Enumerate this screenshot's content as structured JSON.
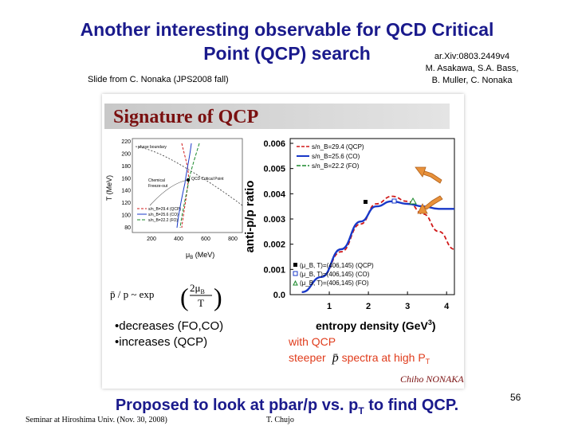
{
  "title": {
    "line1": "Another interesting observable for QCD Critical",
    "line2": "Point (QCP) search"
  },
  "reference": {
    "arxiv": "ar.Xiv:0803.2449v4",
    "authors1": "M. Asakawa, S.A. Bass,",
    "authors2": "B. Muller, C. Nonaka"
  },
  "credit": "Slide from C. Nonaka (JPS2008 fall)",
  "slide": {
    "banner": "Signature of QCP",
    "signature": "Chiho NONAKA",
    "formula_lhs": "p̄ / p ~ exp",
    "formula_num": "2μ",
    "formula_num_sub": "B",
    "formula_den": "T",
    "bullet1": "•decreases (FO,CO)",
    "bullet2": "•increases (QCP)",
    "note1": "with QCP",
    "note2_pre": "steeper",
    "note2_sym": "p̄",
    "note2_post": " spectra at high P",
    "note2_sub": "T"
  },
  "phase_chart": {
    "ylabel": "T (MeV)",
    "xlabel": "μ",
    "xlabel_sub": "B",
    "xlabel_unit": " (MeV)",
    "yticks": [
      "220",
      "200",
      "180",
      "160",
      "140",
      "120",
      "100",
      "80"
    ],
    "xticks": [
      "200",
      "400",
      "600",
      "800"
    ],
    "labels": {
      "phase_boundary": "phase boundary",
      "qcp": "QCD Critical Point",
      "chemical": "Chemical",
      "freezeout": "Freeze-out"
    },
    "legend": [
      "s/n_B=29.4 (QCP)",
      "s/n_B=25.6 (CO)",
      "s/n_B=22.2 (FO)"
    ]
  },
  "chart_data": {
    "type": "line",
    "xlabel": "entropy density (GeV",
    "xlabel_sup": "3",
    "xlabel_end": ")",
    "ylabel": "anti-p/p ratio",
    "xlim": [
      0,
      4.2
    ],
    "ylim": [
      0,
      0.006
    ],
    "xticks": [
      "1",
      "2",
      "3",
      "4"
    ],
    "yticks": [
      "0.006",
      "0.005",
      "0.004",
      "0.003",
      "0.002",
      "0.001",
      "0.0"
    ],
    "series": [
      {
        "name": "s/n_B=29.4 (QCP)",
        "color": "#d01818",
        "dash": true,
        "x": [
          0.3,
          0.8,
          1.3,
          1.8,
          2.2,
          2.6,
          3.0,
          3.4,
          3.8,
          4.2
        ],
        "y": [
          0.0001,
          0.0007,
          0.0017,
          0.0028,
          0.0036,
          0.0039,
          0.0037,
          0.0032,
          0.0025,
          0.0018
        ]
      },
      {
        "name": "s/n_B=25.6 (CO)",
        "color": "#1838c8",
        "dash": false,
        "x": [
          0.3,
          0.8,
          1.3,
          1.8,
          2.2,
          2.6,
          3.0,
          3.4,
          3.8,
          4.2
        ],
        "y": [
          0.0001,
          0.0007,
          0.0018,
          0.0029,
          0.0035,
          0.0037,
          0.0036,
          0.0035,
          0.0034,
          0.0034
        ]
      }
    ],
    "legend_top": [
      "s/n_B=29.4 (QCP)",
      "s/n_B=25.6 (CO)",
      "s/n_B=22.2 (FO)"
    ],
    "legend_bottom": [
      "(μ_B, T)=(406,145) (QCP)",
      "(μ_B, T)=(406,145) (CO)",
      "(μ_B, T)=(406,145) (FO)"
    ],
    "arrow_color": "#e8913a"
  },
  "footer": {
    "seminar": "Seminar at Hiroshima Univ. (Nov. 30, 2008)",
    "author": "T. Chujo",
    "page": "56"
  },
  "bottom": {
    "pre": "Proposed to look at pbar/p vs. p",
    "sub": "T",
    "post": " to find QCP."
  }
}
